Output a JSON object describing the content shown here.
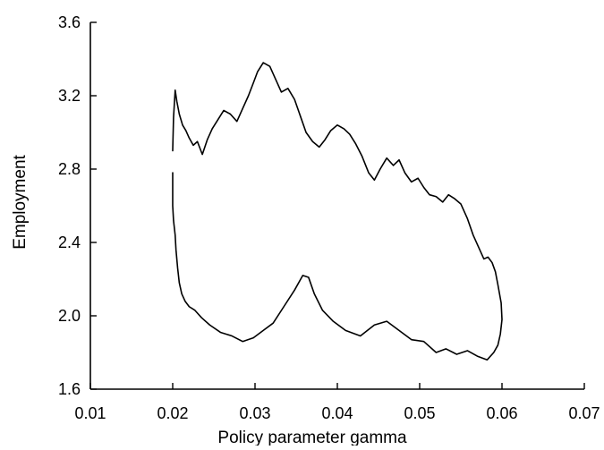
{
  "chart_data": {
    "type": "line",
    "title": "",
    "xlabel": "Policy parameter gamma",
    "ylabel": "Employment",
    "xlim": [
      0.01,
      0.07
    ],
    "ylim": [
      1.6,
      3.6
    ],
    "x_ticks": [
      "0.01",
      "0.02",
      "0.03",
      "0.04",
      "0.05",
      "0.06",
      "0.07"
    ],
    "y_ticks": [
      "1.6",
      "2.0",
      "2.4",
      "2.8",
      "3.2",
      "3.6"
    ],
    "grid": false,
    "legend": "none",
    "series": [
      {
        "x": [
          0.02,
          0.02,
          0.0201,
          0.0203,
          0.0204,
          0.0206,
          0.0208,
          0.0211,
          0.0215,
          0.022,
          0.0227,
          0.0235,
          0.0245,
          0.0258,
          0.0272,
          0.0285,
          0.0298,
          0.031,
          0.0322,
          0.0335,
          0.0348,
          0.0358,
          0.0365,
          0.0372,
          0.0382,
          0.0395,
          0.041,
          0.0428,
          0.0445,
          0.046,
          0.0475,
          0.049,
          0.0505,
          0.052,
          0.0532,
          0.0545,
          0.0558,
          0.057,
          0.0582,
          0.059,
          0.0595,
          0.0598,
          0.06,
          0.0599,
          0.0597,
          0.0595,
          0.0592,
          0.0588,
          0.0583,
          0.0578,
          0.0572,
          0.0565,
          0.0558,
          0.055,
          0.0542,
          0.0535,
          0.0528,
          0.052,
          0.0512,
          0.0505,
          0.0498,
          0.049,
          0.0482,
          0.0475,
          0.0468,
          0.046,
          0.0452,
          0.0445,
          0.0438,
          0.043,
          0.0422,
          0.0415,
          0.0408,
          0.04,
          0.0392,
          0.0385,
          0.0378,
          0.037,
          0.0362,
          0.0355,
          0.0348,
          0.034,
          0.0332,
          0.0325,
          0.0318,
          0.031,
          0.0303,
          0.0298,
          0.0292,
          0.0285,
          0.0278,
          0.027,
          0.0262,
          0.0255,
          0.0248,
          0.0242,
          0.0236,
          0.023,
          0.0225,
          0.022,
          0.0216,
          0.0212,
          0.0208,
          0.0205,
          0.0203,
          0.0201,
          0.02
        ],
        "y": [
          2.78,
          2.6,
          2.52,
          2.44,
          2.36,
          2.26,
          2.18,
          2.12,
          2.08,
          2.05,
          2.03,
          1.99,
          1.95,
          1.91,
          1.89,
          1.86,
          1.88,
          1.92,
          1.96,
          2.05,
          2.14,
          2.22,
          2.21,
          2.12,
          2.03,
          1.97,
          1.92,
          1.89,
          1.95,
          1.97,
          1.92,
          1.87,
          1.86,
          1.8,
          1.82,
          1.79,
          1.81,
          1.78,
          1.76,
          1.8,
          1.84,
          1.9,
          1.98,
          2.07,
          2.12,
          2.17,
          2.24,
          2.29,
          2.32,
          2.31,
          2.37,
          2.44,
          2.53,
          2.61,
          2.64,
          2.66,
          2.62,
          2.65,
          2.66,
          2.7,
          2.75,
          2.73,
          2.78,
          2.85,
          2.82,
          2.86,
          2.8,
          2.74,
          2.78,
          2.87,
          2.94,
          2.99,
          3.02,
          3.04,
          3.01,
          2.96,
          2.92,
          2.95,
          3.0,
          3.09,
          3.18,
          3.24,
          3.22,
          3.29,
          3.36,
          3.38,
          3.33,
          3.27,
          3.2,
          3.13,
          3.06,
          3.1,
          3.12,
          3.07,
          3.02,
          2.96,
          2.88,
          2.95,
          2.93,
          2.97,
          3.01,
          3.04,
          3.1,
          3.17,
          3.23,
          3.08,
          2.9
        ]
      }
    ]
  }
}
